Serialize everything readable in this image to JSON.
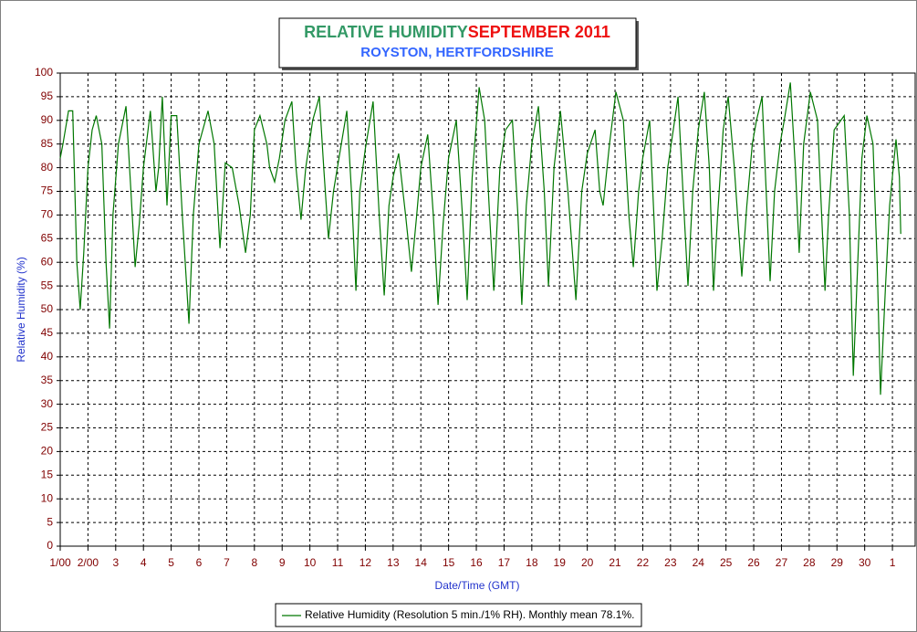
{
  "chart_data": {
    "type": "line",
    "title": "RELATIVE HUMIDITY",
    "title_period": "SEPTEMBER 2011",
    "subtitle": "ROYSTON, HERTFORDSHIRE",
    "x_label": "Date/Time (GMT)",
    "y_label": "Relative Humidity (%)",
    "grid": true,
    "legend": "bottom",
    "xlim": [
      1,
      31.82
    ],
    "ylim": [
      0,
      100
    ],
    "yticks": [
      0,
      5,
      10,
      15,
      20,
      25,
      30,
      35,
      40,
      45,
      50,
      55,
      60,
      65,
      70,
      75,
      80,
      85,
      90,
      95,
      100
    ],
    "xticks": [
      {
        "value": 1,
        "label": "1/00"
      },
      {
        "value": 2,
        "label": "2/00"
      },
      3,
      4,
      5,
      6,
      7,
      8,
      9,
      10,
      11,
      12,
      13,
      14,
      15,
      16,
      17,
      18,
      19,
      20,
      21,
      22,
      23,
      24,
      25,
      26,
      27,
      28,
      29,
      30,
      {
        "value": 31,
        "label": "1"
      }
    ],
    "x": [
      1.0,
      1.1,
      1.3,
      1.45,
      1.6,
      1.72,
      1.85,
      2.0,
      2.15,
      2.3,
      2.5,
      2.65,
      2.78,
      2.9,
      3.1,
      3.37,
      3.55,
      3.7,
      3.85,
      4.0,
      4.25,
      4.45,
      4.55,
      4.68,
      4.85,
      5.0,
      5.2,
      5.4,
      5.64,
      5.8,
      6.0,
      6.33,
      6.55,
      6.76,
      6.95,
      7.2,
      7.45,
      7.68,
      7.85,
      8.0,
      8.2,
      8.45,
      8.55,
      8.73,
      8.9,
      9.1,
      9.35,
      9.5,
      9.68,
      9.85,
      10.1,
      10.34,
      10.5,
      10.67,
      10.85,
      11.05,
      11.33,
      11.5,
      11.66,
      11.8,
      12.0,
      12.28,
      12.5,
      12.68,
      12.85,
      13.0,
      13.2,
      13.45,
      13.66,
      13.85,
      14.0,
      14.25,
      14.45,
      14.62,
      14.8,
      15.0,
      15.28,
      15.5,
      15.67,
      15.85,
      16.1,
      16.3,
      16.48,
      16.63,
      16.85,
      17.05,
      17.3,
      17.5,
      17.64,
      17.8,
      18.0,
      18.24,
      18.45,
      18.6,
      18.8,
      19.03,
      19.3,
      19.59,
      19.8,
      20.0,
      20.28,
      20.45,
      20.57,
      20.8,
      21.03,
      21.3,
      21.5,
      21.66,
      21.85,
      22.0,
      22.25,
      22.4,
      22.51,
      22.7,
      22.9,
      23.1,
      23.27,
      23.45,
      23.63,
      23.8,
      24.0,
      24.22,
      24.4,
      24.55,
      24.7,
      24.9,
      25.08,
      25.3,
      25.57,
      25.75,
      25.95,
      26.1,
      26.3,
      26.45,
      26.59,
      26.75,
      26.95,
      27.1,
      27.32,
      27.5,
      27.64,
      27.8,
      28.04,
      28.3,
      28.45,
      28.57,
      28.7,
      28.9,
      29.26,
      29.45,
      29.59,
      29.75,
      29.9,
      30.08,
      30.3,
      30.45,
      30.57,
      30.75,
      30.9,
      31.13,
      31.25,
      31.3
    ],
    "series": [
      {
        "name": "Relative Humidity (Resolution 5 min./1% RH). Monthly mean 78.1%.",
        "color": "#007700",
        "values": [
          82,
          85,
          92,
          92,
          60,
          50,
          62,
          80,
          88,
          91,
          85,
          60,
          46,
          70,
          85,
          93,
          75,
          59,
          68,
          80,
          92,
          75,
          80,
          95,
          72,
          91,
          91,
          70,
          47,
          70,
          85,
          92,
          85,
          63,
          81,
          80,
          72,
          62,
          70,
          88,
          91,
          85,
          80,
          77,
          82,
          90,
          94,
          80,
          69,
          80,
          90,
          95,
          80,
          65,
          75,
          82,
          92,
          75,
          54,
          75,
          84,
          94,
          70,
          53,
          72,
          78,
          83,
          70,
          58,
          70,
          80,
          87,
          70,
          51,
          68,
          82,
          90,
          70,
          52,
          78,
          97,
          90,
          70,
          54,
          80,
          88,
          90,
          70,
          51,
          72,
          85,
          93,
          75,
          55,
          80,
          92,
          75,
          52,
          75,
          83,
          88,
          75,
          72,
          85,
          96,
          90,
          70,
          59,
          75,
          82,
          90,
          70,
          54,
          65,
          80,
          88,
          95,
          75,
          55,
          75,
          88,
          96,
          80,
          54,
          70,
          88,
          95,
          80,
          57,
          72,
          85,
          90,
          95,
          75,
          56,
          75,
          85,
          90,
          98,
          80,
          62,
          85,
          96,
          90,
          70,
          54,
          70,
          88,
          91,
          70,
          36,
          60,
          82,
          91,
          85,
          60,
          32,
          55,
          72,
          86,
          78,
          66
        ]
      }
    ]
  }
}
